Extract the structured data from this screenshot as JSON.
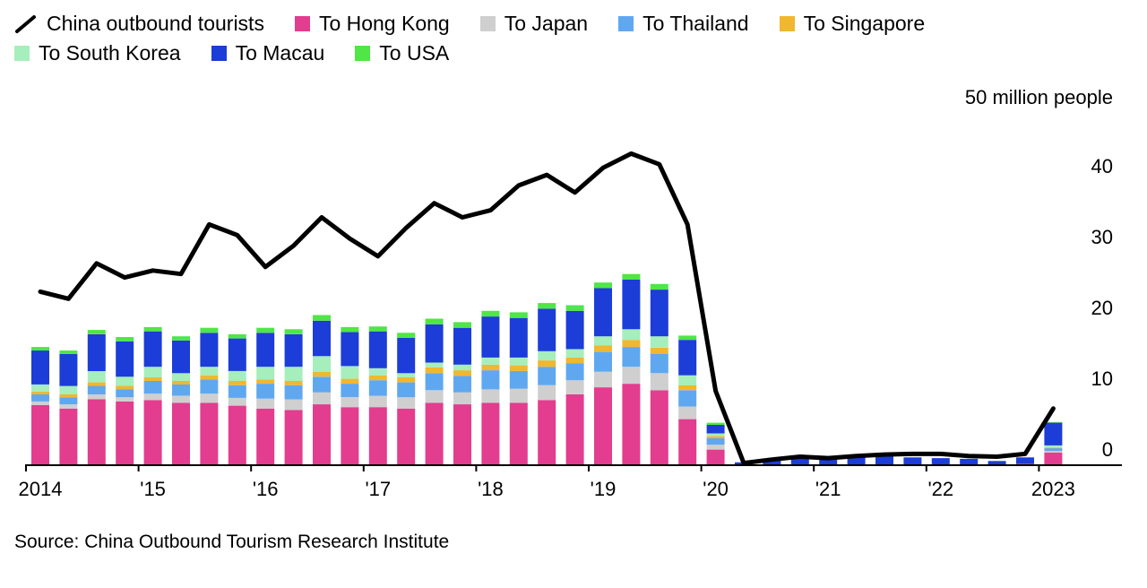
{
  "legend": {
    "rows": [
      [
        {
          "type": "line",
          "key": "china-outbound-tourists",
          "label": "China outbound tourists",
          "color": "#000000"
        },
        {
          "type": "swatch",
          "key": "hong-kong",
          "label": "To Hong Kong",
          "color": "#e23d8e"
        },
        {
          "type": "swatch",
          "key": "japan",
          "label": "To Japan",
          "color": "#cfcfcf"
        },
        {
          "type": "swatch",
          "key": "thailand",
          "label": "To Thailand",
          "color": "#5fa8f0"
        },
        {
          "type": "swatch",
          "key": "singapore",
          "label": "To Singapore",
          "color": "#f0b72f"
        }
      ],
      [
        {
          "type": "swatch",
          "key": "south-korea",
          "label": "To South Korea",
          "color": "#a6eebb"
        },
        {
          "type": "swatch",
          "key": "macau",
          "label": "To Macau",
          "color": "#1c3dd8"
        },
        {
          "type": "swatch",
          "key": "usa",
          "label": "To USA",
          "color": "#4fe646"
        }
      ]
    ]
  },
  "axis": {
    "unit_label": "50 million people",
    "y_ticks": [
      0,
      10,
      20,
      30,
      40
    ],
    "x_labels": [
      "2014",
      "'15",
      "'16",
      "'17",
      "'18",
      "'19",
      "'20",
      "'21",
      "'22",
      "2023"
    ]
  },
  "source": "Source: China Outbound Tourism Research Institute",
  "chart_data": {
    "type": "combo: stacked bar + line",
    "unit": "million people",
    "ylim": [
      0,
      50
    ],
    "grid": false,
    "legend_position": "top-left",
    "categories": [
      "2014 Q1",
      "2014 Q2",
      "2014 Q3",
      "2014 Q4",
      "2015 Q1",
      "2015 Q2",
      "2015 Q3",
      "2015 Q4",
      "2016 Q1",
      "2016 Q2",
      "2016 Q3",
      "2016 Q4",
      "2017 Q1",
      "2017 Q2",
      "2017 Q3",
      "2017 Q4",
      "2018 Q1",
      "2018 Q2",
      "2018 Q3",
      "2018 Q4",
      "2019 Q1",
      "2019 Q2",
      "2019 Q3",
      "2019 Q4",
      "2020 Q1",
      "2020 Q2",
      "2020 Q3",
      "2020 Q4",
      "2021 Q1",
      "2021 Q2",
      "2021 Q3",
      "2021 Q4",
      "2022 Q1",
      "2022 Q2",
      "2022 Q3",
      "2022 Q4",
      "2023 Q1"
    ],
    "line_series": {
      "name": "China outbound tourists",
      "key": "china-outbound-tourists",
      "color": "#000000",
      "values": [
        24.5,
        23.5,
        28.5,
        26.5,
        27.5,
        27.0,
        34.0,
        32.5,
        28.0,
        31.0,
        35.0,
        32.0,
        29.5,
        33.5,
        37.0,
        35.0,
        36.0,
        39.5,
        41.0,
        38.5,
        42.0,
        44.0,
        42.5,
        34.0,
        10.5,
        0.3,
        0.8,
        1.2,
        1.0,
        1.3,
        1.5,
        1.6,
        1.6,
        1.3,
        1.2,
        1.6,
        8.0
      ]
    },
    "bar_series": [
      {
        "name": "To Hong Kong",
        "key": "hong-kong",
        "color": "#e23d8e",
        "values": [
          8.5,
          8.0,
          9.3,
          9.0,
          9.2,
          8.8,
          8.8,
          8.4,
          8.0,
          7.8,
          8.6,
          8.2,
          8.2,
          8.0,
          8.8,
          8.6,
          8.8,
          8.8,
          9.2,
          10.0,
          11.0,
          11.5,
          10.6,
          6.5,
          2.2,
          0.1,
          0.1,
          0.1,
          0.1,
          0.1,
          0.1,
          0.1,
          0.1,
          0.1,
          0.1,
          0.2,
          1.8
        ]
      },
      {
        "name": "To Japan",
        "key": "japan",
        "color": "#cfcfcf",
        "values": [
          0.5,
          0.6,
          0.7,
          0.6,
          0.9,
          1.0,
          1.3,
          1.1,
          1.4,
          1.5,
          1.7,
          1.4,
          1.6,
          1.6,
          1.8,
          1.7,
          1.9,
          2.0,
          2.1,
          2.0,
          2.2,
          2.4,
          2.4,
          1.8,
          0.7,
          0,
          0,
          0,
          0,
          0,
          0,
          0,
          0,
          0,
          0,
          0,
          0.2
        ]
      },
      {
        "name": "To Thailand",
        "key": "thailand",
        "color": "#5fa8f0",
        "values": [
          1.0,
          1.0,
          1.2,
          1.1,
          1.8,
          1.6,
          2.0,
          1.8,
          2.1,
          2.0,
          2.2,
          1.9,
          2.2,
          2.1,
          2.4,
          2.3,
          2.7,
          2.5,
          2.6,
          2.4,
          2.8,
          2.8,
          2.7,
          2.3,
          0.9,
          0,
          0,
          0,
          0,
          0,
          0,
          0,
          0,
          0,
          0,
          0,
          0.4
        ]
      },
      {
        "name": "To Singapore",
        "key": "singapore",
        "color": "#f0b72f",
        "values": [
          0.4,
          0.4,
          0.5,
          0.5,
          0.5,
          0.5,
          0.6,
          0.6,
          0.6,
          0.6,
          0.7,
          0.7,
          0.7,
          0.7,
          0.8,
          0.8,
          0.8,
          0.8,
          0.9,
          0.8,
          0.9,
          1.0,
          0.9,
          0.7,
          0.3,
          0,
          0,
          0,
          0,
          0,
          0,
          0,
          0,
          0,
          0,
          0,
          0.1
        ]
      },
      {
        "name": "To South Korea",
        "key": "south-korea",
        "color": "#a6eebb",
        "values": [
          1.0,
          1.2,
          1.6,
          1.3,
          1.5,
          1.1,
          1.2,
          1.4,
          1.8,
          2.0,
          2.2,
          1.8,
          1.0,
          0.6,
          0.7,
          0.8,
          1.0,
          1.1,
          1.3,
          1.2,
          1.3,
          1.5,
          1.6,
          1.4,
          0.4,
          0,
          0,
          0,
          0,
          0,
          0,
          0,
          0,
          0,
          0,
          0,
          0.3
        ]
      },
      {
        "name": "To Macau",
        "key": "macau",
        "color": "#1c3dd8",
        "values": [
          4.8,
          4.5,
          5.2,
          5.0,
          5.0,
          4.6,
          4.8,
          4.6,
          4.8,
          4.6,
          5.0,
          4.8,
          5.2,
          5.0,
          5.4,
          5.2,
          5.8,
          5.6,
          6.0,
          5.4,
          6.8,
          7.0,
          6.6,
          5.0,
          1.2,
          0.3,
          0.6,
          0.9,
          0.9,
          1.1,
          1.3,
          1.0,
          0.9,
          0.8,
          0.5,
          0.9,
          3.2
        ]
      },
      {
        "name": "To USA",
        "key": "usa",
        "color": "#4fe646",
        "values": [
          0.5,
          0.5,
          0.6,
          0.6,
          0.6,
          0.6,
          0.7,
          0.6,
          0.7,
          0.7,
          0.8,
          0.7,
          0.7,
          0.7,
          0.8,
          0.8,
          0.8,
          0.8,
          0.8,
          0.8,
          0.8,
          0.8,
          0.8,
          0.6,
          0.3,
          0,
          0,
          0,
          0,
          0,
          0,
          0,
          0,
          0,
          0,
          0,
          0.1
        ]
      }
    ]
  }
}
